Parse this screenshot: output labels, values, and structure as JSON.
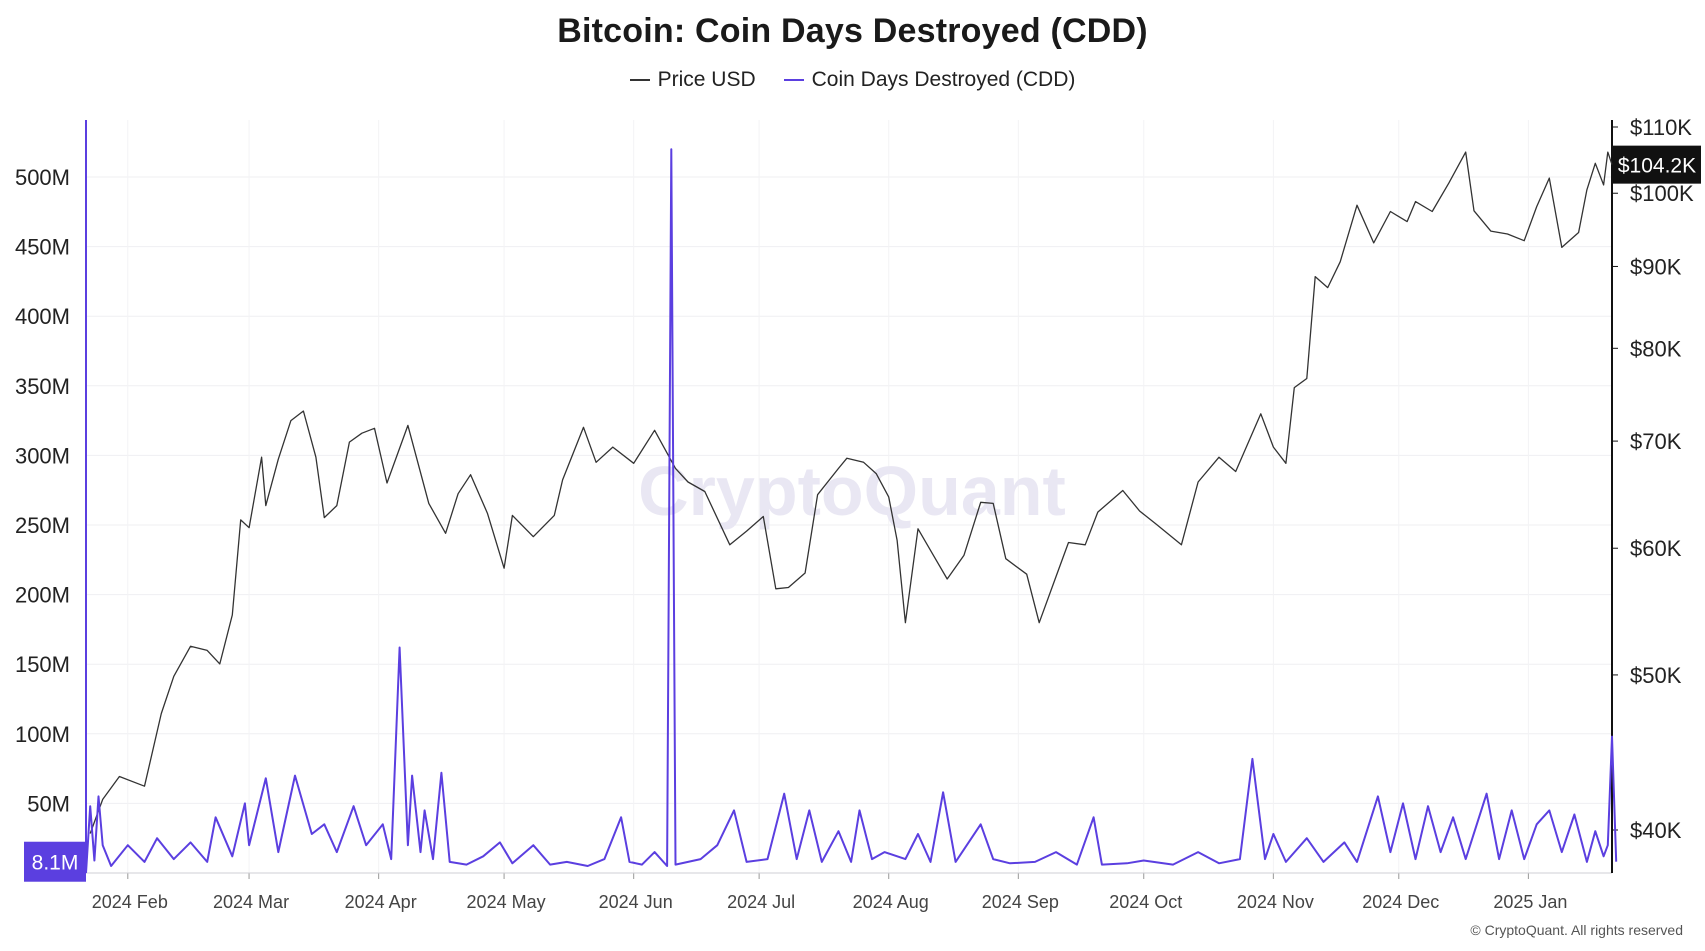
{
  "chart_data": {
    "type": "line",
    "title": "Bitcoin: Coin Days Destroyed (CDD)",
    "watermark": "CryptoQuant",
    "copyright": "© CryptoQuant. All rights reserved",
    "grid": true,
    "legend_placement": "top-center",
    "x_range": [
      "2024-01-22",
      "2025-01-21"
    ],
    "x_tick_labels": [
      "2024 Feb",
      "2024 Mar",
      "2024 Apr",
      "2024 May",
      "2024 Jun",
      "2024 Jul",
      "2024 Aug",
      "2024 Sep",
      "2024 Oct",
      "2024 Nov",
      "2024 Dec",
      "2025 Jan"
    ],
    "left_axis": {
      "ylim": [
        0,
        540000000
      ],
      "ticks": [
        50000000,
        100000000,
        150000000,
        200000000,
        250000000,
        300000000,
        350000000,
        400000000,
        450000000,
        500000000
      ],
      "tick_labels": [
        "50M",
        "100M",
        "150M",
        "200M",
        "250M",
        "300M",
        "350M",
        "400M",
        "450M",
        "500M"
      ],
      "current_label": "8.1M",
      "color": "#5b3fe0"
    },
    "right_axis": {
      "scale": "log",
      "ticks": [
        40000,
        50000,
        60000,
        70000,
        80000,
        90000,
        100000,
        110000
      ],
      "tick_labels": [
        "$40K",
        "$50K",
        "$60K",
        "$70K",
        "$80K",
        "$90K",
        "$100K",
        "$110K"
      ],
      "current_label": "$104.2K",
      "color": "#111111"
    },
    "series": [
      {
        "name": "Price USD",
        "axis": "right",
        "color": "#333333",
        "points": [
          [
            "2024-01-23",
            39800
          ],
          [
            "2024-01-26",
            41800
          ],
          [
            "2024-01-30",
            43200
          ],
          [
            "2024-02-05",
            42600
          ],
          [
            "2024-02-09",
            47300
          ],
          [
            "2024-02-12",
            49900
          ],
          [
            "2024-02-16",
            52100
          ],
          [
            "2024-02-20",
            51800
          ],
          [
            "2024-02-23",
            50800
          ],
          [
            "2024-02-26",
            54500
          ],
          [
            "2024-02-28",
            62500
          ],
          [
            "2024-03-01",
            61800
          ],
          [
            "2024-03-04",
            68400
          ],
          [
            "2024-03-05",
            63800
          ],
          [
            "2024-03-08",
            68200
          ],
          [
            "2024-03-11",
            72100
          ],
          [
            "2024-03-14",
            73100
          ],
          [
            "2024-03-17",
            68400
          ],
          [
            "2024-03-19",
            62700
          ],
          [
            "2024-03-22",
            63800
          ],
          [
            "2024-03-25",
            69900
          ],
          [
            "2024-03-28",
            70800
          ],
          [
            "2024-03-31",
            71300
          ],
          [
            "2024-04-03",
            65900
          ],
          [
            "2024-04-08",
            71600
          ],
          [
            "2024-04-13",
            64000
          ],
          [
            "2024-04-17",
            61300
          ],
          [
            "2024-04-20",
            64900
          ],
          [
            "2024-04-23",
            66700
          ],
          [
            "2024-04-27",
            63100
          ],
          [
            "2024-05-01",
            58300
          ],
          [
            "2024-05-03",
            62900
          ],
          [
            "2024-05-08",
            61000
          ],
          [
            "2024-05-13",
            62900
          ],
          [
            "2024-05-15",
            66200
          ],
          [
            "2024-05-20",
            71400
          ],
          [
            "2024-05-23",
            67900
          ],
          [
            "2024-05-27",
            69400
          ],
          [
            "2024-06-01",
            67800
          ],
          [
            "2024-06-06",
            71100
          ],
          [
            "2024-06-11",
            67300
          ],
          [
            "2024-06-14",
            66000
          ],
          [
            "2024-06-18",
            65100
          ],
          [
            "2024-06-24",
            60300
          ],
          [
            "2024-06-28",
            61500
          ],
          [
            "2024-07-02",
            62800
          ],
          [
            "2024-07-05",
            56600
          ],
          [
            "2024-07-08",
            56700
          ],
          [
            "2024-07-12",
            57900
          ],
          [
            "2024-07-15",
            64800
          ],
          [
            "2024-07-20",
            67300
          ],
          [
            "2024-07-22",
            68300
          ],
          [
            "2024-07-26",
            67900
          ],
          [
            "2024-07-29",
            66800
          ],
          [
            "2024-08-01",
            64600
          ],
          [
            "2024-08-03",
            60700
          ],
          [
            "2024-08-05",
            53900
          ],
          [
            "2024-08-08",
            61700
          ],
          [
            "2024-08-12",
            59200
          ],
          [
            "2024-08-15",
            57400
          ],
          [
            "2024-08-19",
            59400
          ],
          [
            "2024-08-23",
            64100
          ],
          [
            "2024-08-26",
            64000
          ],
          [
            "2024-08-29",
            59100
          ],
          [
            "2024-09-03",
            57800
          ],
          [
            "2024-09-06",
            53900
          ],
          [
            "2024-09-10",
            57600
          ],
          [
            "2024-09-13",
            60500
          ],
          [
            "2024-09-17",
            60300
          ],
          [
            "2024-09-20",
            63200
          ],
          [
            "2024-09-26",
            65200
          ],
          [
            "2024-09-30",
            63300
          ],
          [
            "2024-10-04",
            62100
          ],
          [
            "2024-10-10",
            60300
          ],
          [
            "2024-10-14",
            66000
          ],
          [
            "2024-10-19",
            68400
          ],
          [
            "2024-10-23",
            67000
          ],
          [
            "2024-10-29",
            72800
          ],
          [
            "2024-11-01",
            69400
          ],
          [
            "2024-11-04",
            67800
          ],
          [
            "2024-11-06",
            75600
          ],
          [
            "2024-11-09",
            76600
          ],
          [
            "2024-11-11",
            88700
          ],
          [
            "2024-11-14",
            87300
          ],
          [
            "2024-11-17",
            90600
          ],
          [
            "2024-11-21",
            98300
          ],
          [
            "2024-11-25",
            93100
          ],
          [
            "2024-11-29",
            97400
          ],
          [
            "2024-12-03",
            96000
          ],
          [
            "2024-12-05",
            98800
          ],
          [
            "2024-12-09",
            97400
          ],
          [
            "2024-12-13",
            101500
          ],
          [
            "2024-12-17",
            106100
          ],
          [
            "2024-12-19",
            97500
          ],
          [
            "2024-12-23",
            94700
          ],
          [
            "2024-12-27",
            94300
          ],
          [
            "2024-12-31",
            93400
          ],
          [
            "2025-01-03",
            98100
          ],
          [
            "2025-01-06",
            102200
          ],
          [
            "2025-01-09",
            92500
          ],
          [
            "2025-01-13",
            94500
          ],
          [
            "2025-01-15",
            100500
          ],
          [
            "2025-01-17",
            104400
          ],
          [
            "2025-01-19",
            101200
          ],
          [
            "2025-01-20",
            106100
          ],
          [
            "2025-01-21",
            104200
          ]
        ]
      },
      {
        "name": "Coin Days Destroyed (CDD)",
        "axis": "left",
        "color": "#5b3fe0",
        "points": [
          [
            "2024-01-22",
            0
          ],
          [
            "2024-01-23",
            48000000
          ],
          [
            "2024-01-24",
            9000000
          ],
          [
            "2024-01-25",
            55000000
          ],
          [
            "2024-01-26",
            20000000
          ],
          [
            "2024-01-28",
            5000000
          ],
          [
            "2024-02-01",
            20000000
          ],
          [
            "2024-02-05",
            8000000
          ],
          [
            "2024-02-08",
            25000000
          ],
          [
            "2024-02-12",
            10000000
          ],
          [
            "2024-02-16",
            22000000
          ],
          [
            "2024-02-20",
            8000000
          ],
          [
            "2024-02-22",
            40000000
          ],
          [
            "2024-02-26",
            12000000
          ],
          [
            "2024-02-29",
            50000000
          ],
          [
            "2024-03-01",
            20000000
          ],
          [
            "2024-03-05",
            68000000
          ],
          [
            "2024-03-08",
            15000000
          ],
          [
            "2024-03-12",
            70000000
          ],
          [
            "2024-03-16",
            28000000
          ],
          [
            "2024-03-19",
            35000000
          ],
          [
            "2024-03-22",
            15000000
          ],
          [
            "2024-03-26",
            48000000
          ],
          [
            "2024-03-29",
            20000000
          ],
          [
            "2024-04-02",
            35000000
          ],
          [
            "2024-04-04",
            10000000
          ],
          [
            "2024-04-06",
            162000000
          ],
          [
            "2024-04-08",
            20000000
          ],
          [
            "2024-04-09",
            70000000
          ],
          [
            "2024-04-11",
            15000000
          ],
          [
            "2024-04-12",
            45000000
          ],
          [
            "2024-04-14",
            10000000
          ],
          [
            "2024-04-16",
            72000000
          ],
          [
            "2024-04-18",
            8000000
          ],
          [
            "2024-04-22",
            6000000
          ],
          [
            "2024-04-26",
            12000000
          ],
          [
            "2024-04-30",
            22000000
          ],
          [
            "2024-05-03",
            7000000
          ],
          [
            "2024-05-08",
            20000000
          ],
          [
            "2024-05-12",
            6000000
          ],
          [
            "2024-05-16",
            8000000
          ],
          [
            "2024-05-21",
            5000000
          ],
          [
            "2024-05-25",
            10000000
          ],
          [
            "2024-05-29",
            40000000
          ],
          [
            "2024-05-31",
            8000000
          ],
          [
            "2024-06-03",
            6000000
          ],
          [
            "2024-06-06",
            15000000
          ],
          [
            "2024-06-09",
            5000000
          ],
          [
            "2024-06-10",
            520000000
          ],
          [
            "2024-06-11",
            6000000
          ],
          [
            "2024-06-17",
            10000000
          ],
          [
            "2024-06-21",
            20000000
          ],
          [
            "2024-06-25",
            45000000
          ],
          [
            "2024-06-28",
            8000000
          ],
          [
            "2024-07-03",
            10000000
          ],
          [
            "2024-07-07",
            57000000
          ],
          [
            "2024-07-10",
            10000000
          ],
          [
            "2024-07-13",
            45000000
          ],
          [
            "2024-07-16",
            8000000
          ],
          [
            "2024-07-20",
            30000000
          ],
          [
            "2024-07-23",
            8000000
          ],
          [
            "2024-07-25",
            45000000
          ],
          [
            "2024-07-28",
            10000000
          ],
          [
            "2024-07-31",
            15000000
          ],
          [
            "2024-08-05",
            10000000
          ],
          [
            "2024-08-08",
            28000000
          ],
          [
            "2024-08-11",
            8000000
          ],
          [
            "2024-08-14",
            58000000
          ],
          [
            "2024-08-17",
            8000000
          ],
          [
            "2024-08-23",
            35000000
          ],
          [
            "2024-08-26",
            10000000
          ],
          [
            "2024-08-30",
            7000000
          ],
          [
            "2024-09-05",
            8000000
          ],
          [
            "2024-09-10",
            15000000
          ],
          [
            "2024-09-15",
            6000000
          ],
          [
            "2024-09-19",
            40000000
          ],
          [
            "2024-09-21",
            6000000
          ],
          [
            "2024-09-27",
            7000000
          ],
          [
            "2024-10-01",
            9000000
          ],
          [
            "2024-10-08",
            6000000
          ],
          [
            "2024-10-14",
            15000000
          ],
          [
            "2024-10-19",
            7000000
          ],
          [
            "2024-10-24",
            10000000
          ],
          [
            "2024-10-27",
            82000000
          ],
          [
            "2024-10-30",
            10000000
          ],
          [
            "2024-11-01",
            28000000
          ],
          [
            "2024-11-04",
            8000000
          ],
          [
            "2024-11-09",
            25000000
          ],
          [
            "2024-11-13",
            8000000
          ],
          [
            "2024-11-18",
            22000000
          ],
          [
            "2024-11-21",
            8000000
          ],
          [
            "2024-11-26",
            55000000
          ],
          [
            "2024-11-29",
            15000000
          ],
          [
            "2024-12-02",
            50000000
          ],
          [
            "2024-12-05",
            10000000
          ],
          [
            "2024-12-08",
            48000000
          ],
          [
            "2024-12-11",
            15000000
          ],
          [
            "2024-12-14",
            40000000
          ],
          [
            "2024-12-17",
            10000000
          ],
          [
            "2024-12-22",
            57000000
          ],
          [
            "2024-12-25",
            10000000
          ],
          [
            "2024-12-28",
            45000000
          ],
          [
            "2024-12-31",
            10000000
          ],
          [
            "2025-01-03",
            35000000
          ],
          [
            "2025-01-06",
            45000000
          ],
          [
            "2025-01-09",
            15000000
          ],
          [
            "2025-01-12",
            42000000
          ],
          [
            "2025-01-15",
            8000000
          ],
          [
            "2025-01-17",
            30000000
          ],
          [
            "2025-01-19",
            12000000
          ],
          [
            "2025-01-20",
            20000000
          ],
          [
            "2025-01-21",
            98000000
          ],
          [
            "2025-01-22",
            8100000
          ]
        ]
      }
    ]
  }
}
